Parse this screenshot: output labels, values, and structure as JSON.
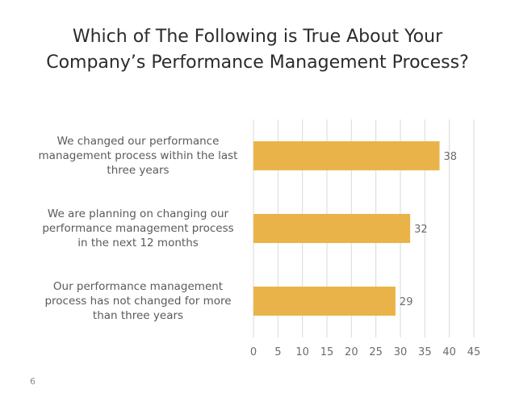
{
  "page": {
    "title_line1": "Which of The Following is True About Your",
    "title_line2": "Company’s Performance Management Process?",
    "page_number": "6"
  },
  "chart_data": {
    "type": "bar",
    "orientation": "horizontal",
    "title": "Which of The Following is True About Your Company’s Performance Management Process?",
    "categories": [
      [
        "We changed our performance",
        "management process within the last",
        "three years"
      ],
      [
        "We are planning on changing our",
        "performance management process",
        "in the next 12 months"
      ],
      [
        "Our performance management",
        "process has not changed for more",
        "than three years"
      ]
    ],
    "values": [
      38,
      32,
      29
    ],
    "xlim": [
      0,
      45
    ],
    "x_ticks": [
      0,
      5,
      10,
      15,
      20,
      25,
      30,
      35,
      40,
      45
    ],
    "grid": true,
    "legend": "none",
    "colors": {
      "bar": "#EAB349",
      "grid": "#d9d9d9",
      "tick_label": "#6b6b6b",
      "data_label": "#6b6b6b"
    }
  }
}
